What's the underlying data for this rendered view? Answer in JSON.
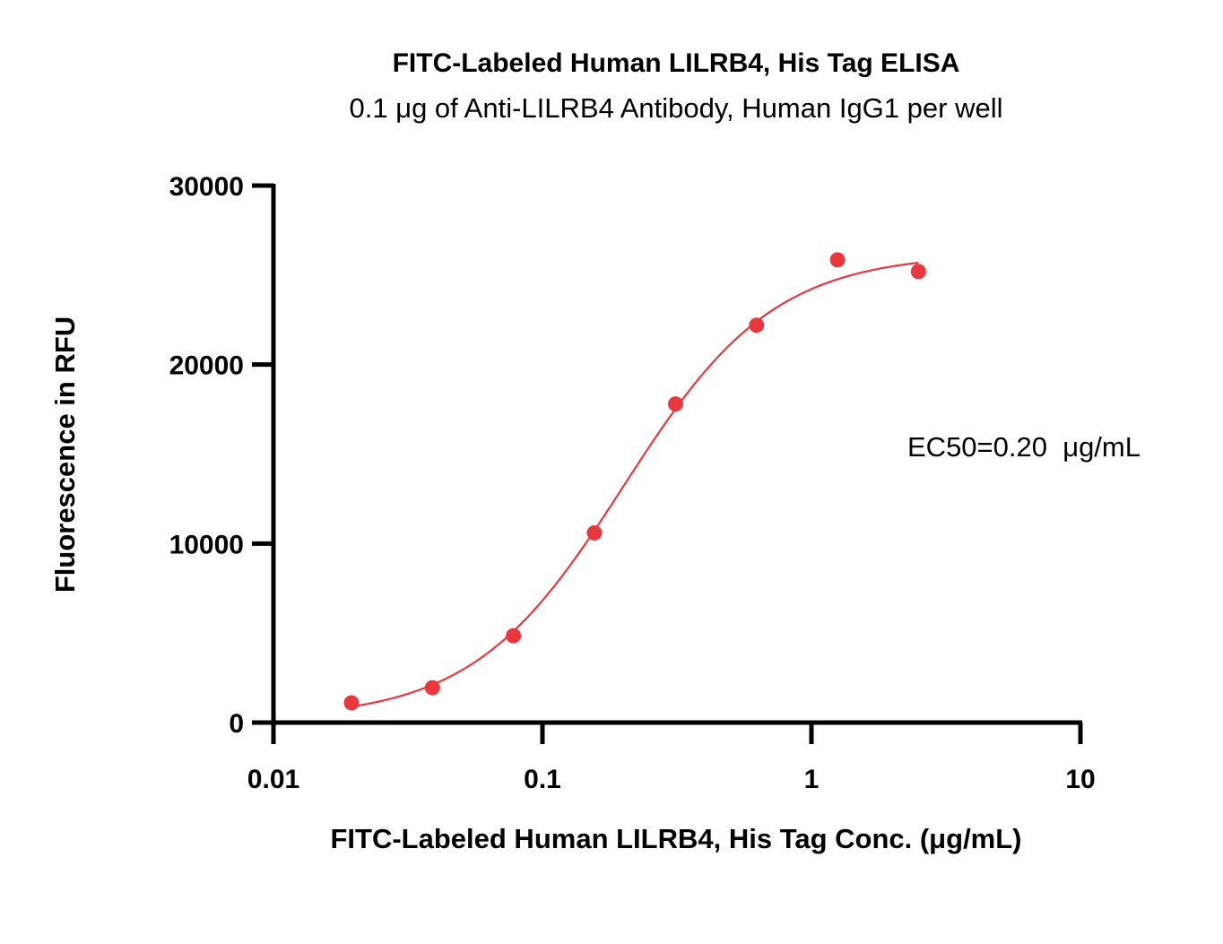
{
  "chart_data": {
    "type": "scatter",
    "title": "FITC-Labeled Human LILRB4, His Tag ELISA",
    "subtitle": "0.1 μg of Anti-LILRB4 Antibody, Human IgG1 per well",
    "xlabel": "FITC-Labeled Human LILRB4, His Tag Conc. (μg/mL)",
    "ylabel": "Fluorescence in RFU",
    "x_scale": "log",
    "xlim": [
      0.01,
      10
    ],
    "ylim": [
      0,
      30000
    ],
    "x_ticks": [
      0.01,
      0.1,
      1,
      10
    ],
    "x_tick_labels": [
      "0.01",
      "0.1",
      "1",
      "10"
    ],
    "y_ticks": [
      0,
      10000,
      20000,
      30000
    ],
    "y_tick_labels": [
      "0",
      "10000",
      "20000",
      "30000"
    ],
    "grid": false,
    "legend": "none",
    "annotation": "EC50=0.20  μg/mL",
    "color": "#e8383d",
    "series": [
      {
        "x": [
          0.0195,
          0.039,
          0.078,
          0.156,
          0.3125,
          0.625,
          1.25,
          2.5
        ],
        "y": [
          1100,
          1950,
          4850,
          10600,
          17800,
          22200,
          25850,
          25200
        ]
      }
    ],
    "fit_curve": {
      "model": "4PL",
      "bottom": 200,
      "top": 26200,
      "ec50": 0.2,
      "hill": 1.55,
      "x_range": [
        0.0195,
        2.5
      ]
    }
  }
}
